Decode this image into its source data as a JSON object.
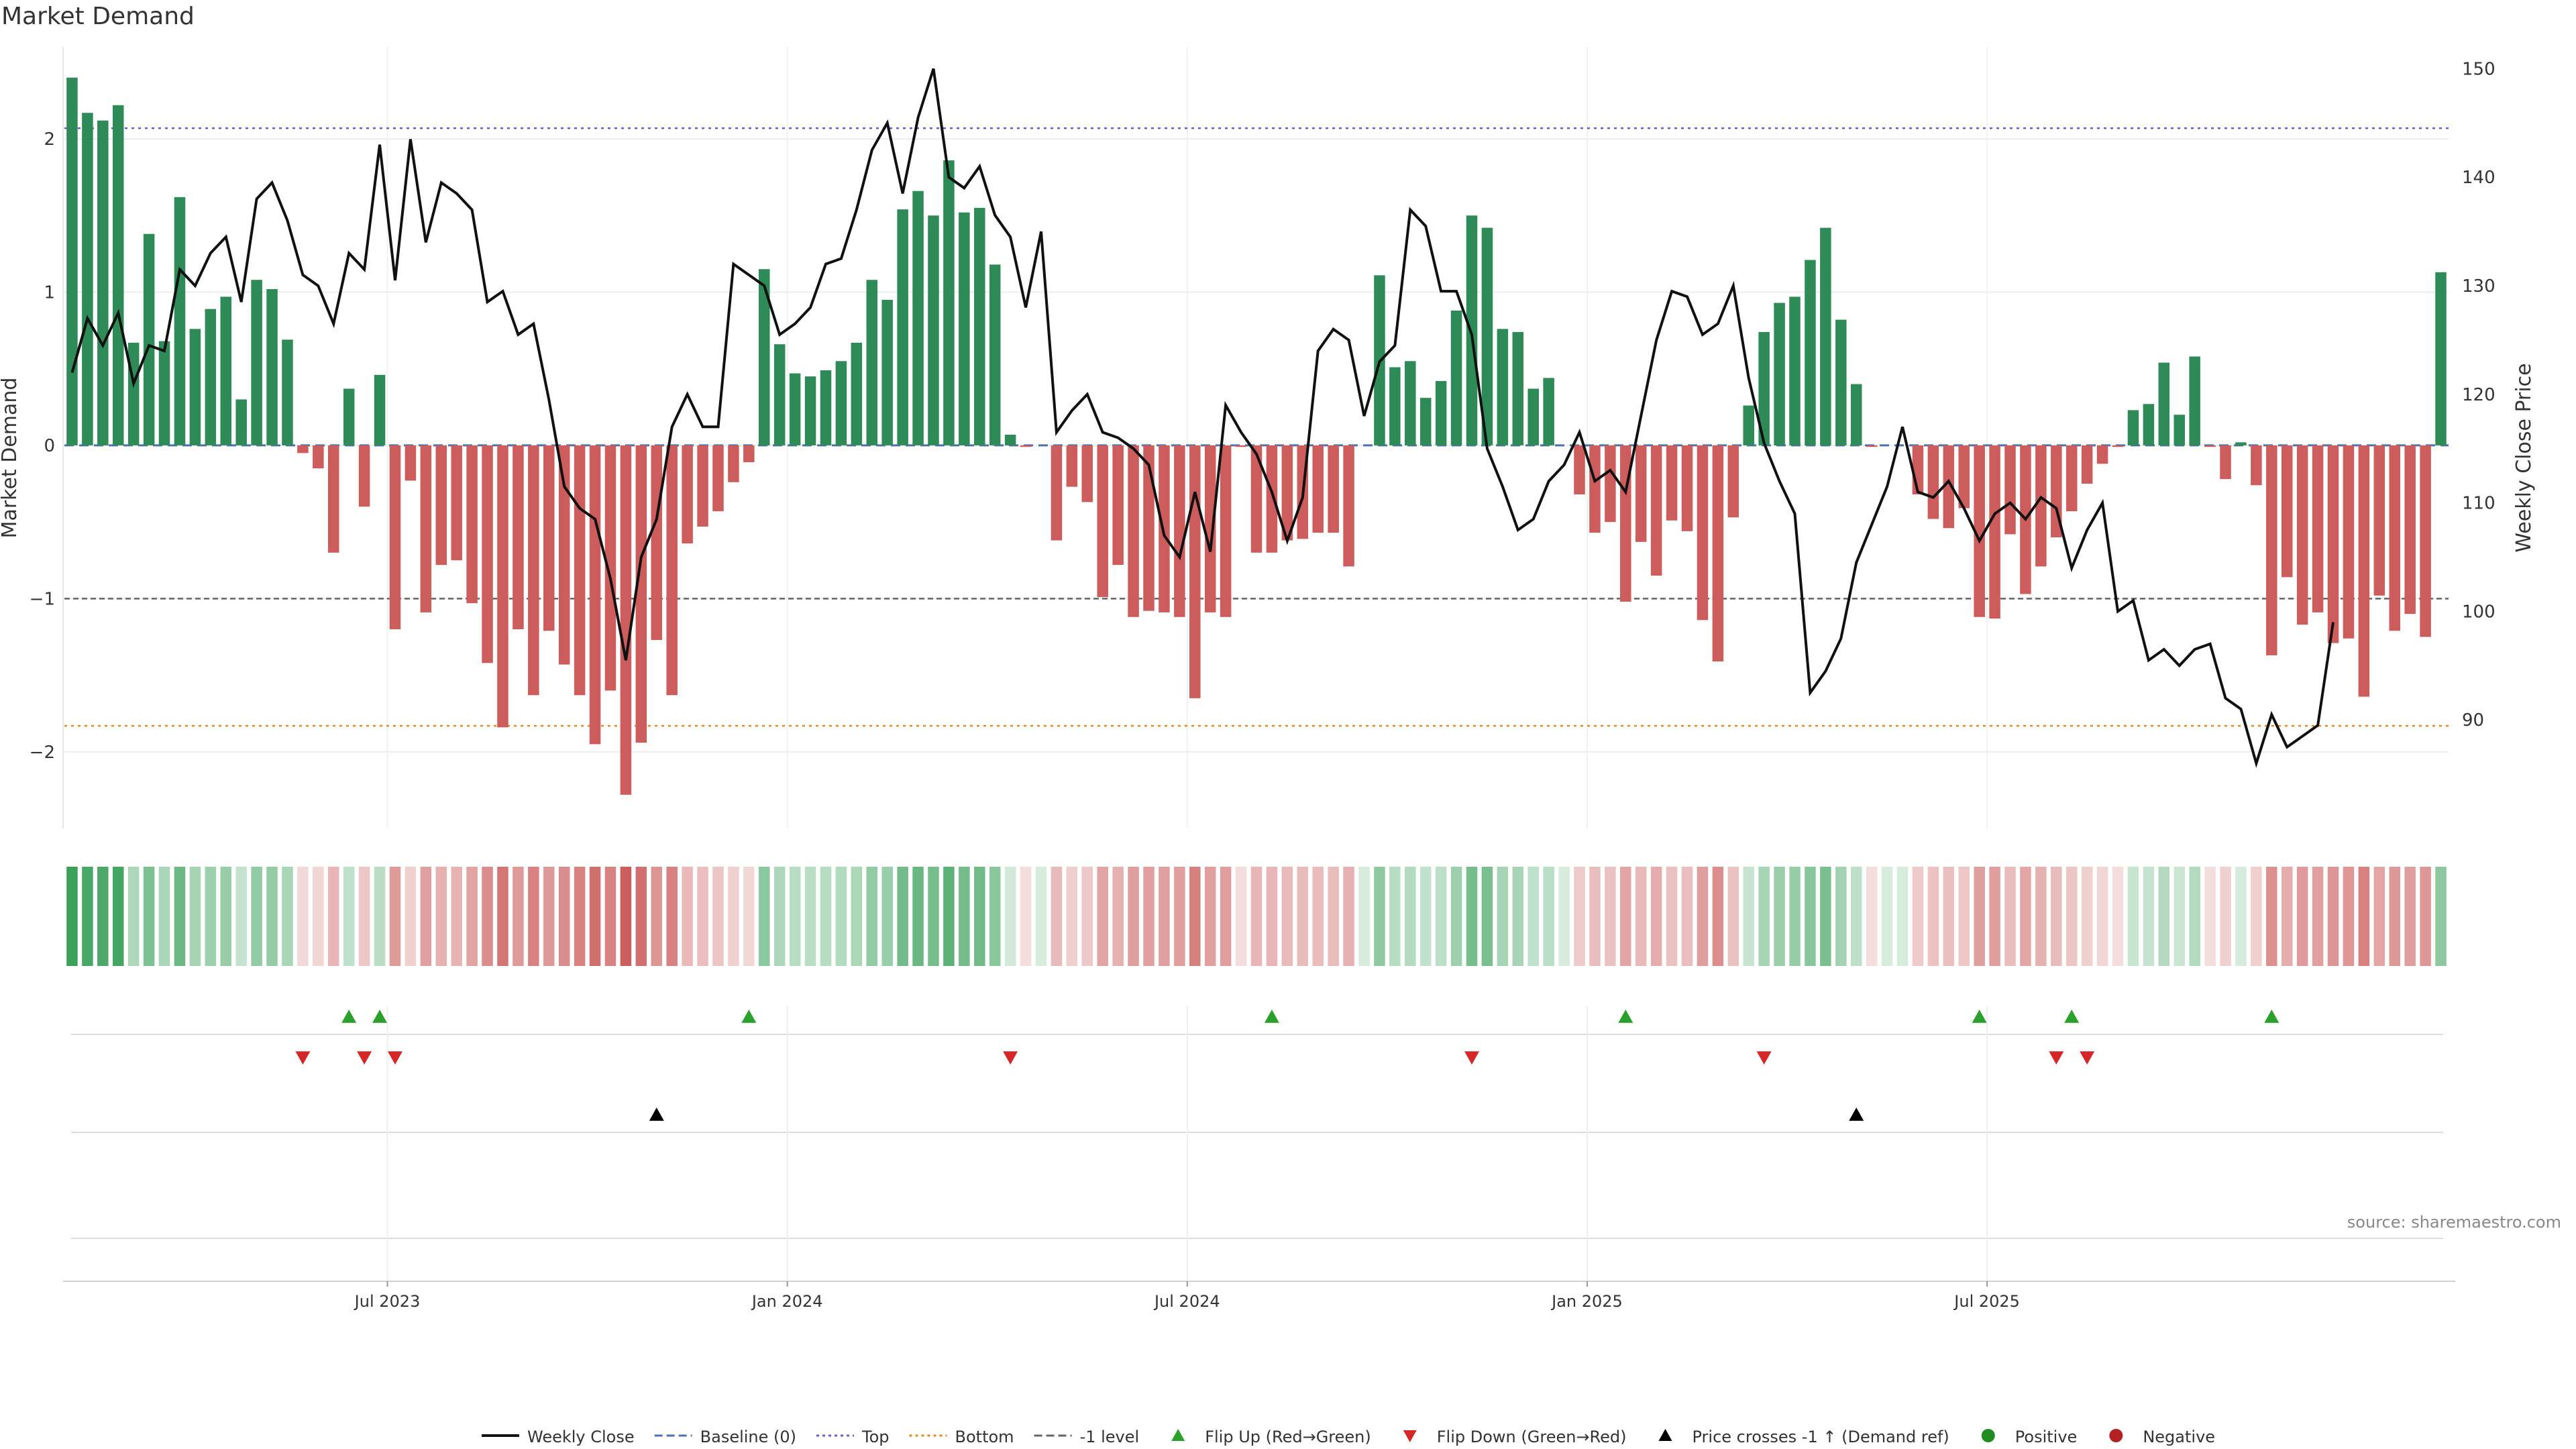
{
  "chart_title": "Market Demand",
  "source_note": "source: sharemaestro.com",
  "colors": {
    "positive": "#2e8b57",
    "negative": "#cd5c5c",
    "price_line": "#111111",
    "baseline": "#4c72b0",
    "top_line": "#6a5acd",
    "bottom_line": "#e08a1e",
    "minus1_line": "#666666",
    "flip_up": "#2ca02c",
    "flip_down": "#d62728",
    "cross": "#000000",
    "legend_positive": "#228b22",
    "legend_negative": "#b22222"
  },
  "chart_data": {
    "type": "bar+line",
    "title": "Market Demand",
    "left_axis": {
      "label": "Market Demand",
      "ylim": [
        -2.5,
        2.6
      ],
      "ticks": [
        2,
        1,
        0,
        -1,
        -2
      ],
      "tick_labels": [
        "2",
        "1",
        "0",
        "−1",
        "−2"
      ]
    },
    "right_axis": {
      "label": "Weekly Close Price",
      "ylim": [
        80,
        152
      ],
      "ticks": [
        150,
        140,
        130,
        120,
        110,
        100,
        90
      ],
      "tick_labels": [
        "150",
        "140",
        "130",
        "120",
        "110",
        "100",
        "90"
      ]
    },
    "reference_lines": {
      "baseline": 0,
      "top": 2.07,
      "bottom": -1.83,
      "minus1": -1.0
    },
    "x_labels": [
      {
        "label": "Jul 2023",
        "week": 21
      },
      {
        "label": "Jan 2024",
        "week": 47
      },
      {
        "label": "Jul 2024",
        "week": 73
      },
      {
        "label": "Jan 2025",
        "week": 99
      },
      {
        "label": "Jul 2025",
        "week": 125
      }
    ],
    "demand": [
      2.4,
      2.17,
      2.12,
      2.22,
      0.67,
      1.38,
      0.68,
      1.62,
      0.76,
      0.89,
      0.97,
      0.3,
      1.08,
      1.02,
      0.69,
      -0.05,
      -0.15,
      -0.7,
      0.37,
      -0.4,
      0.46,
      -1.2,
      -0.23,
      -1.09,
      -0.78,
      -0.75,
      -1.03,
      -1.42,
      -1.84,
      -1.2,
      -1.63,
      -1.21,
      -1.43,
      -1.63,
      -1.95,
      -1.6,
      -2.28,
      -1.94,
      -1.27,
      -1.63,
      -0.64,
      -0.53,
      -0.43,
      -0.24,
      -0.11,
      1.15,
      0.66,
      0.47,
      0.45,
      0.49,
      0.55,
      0.67,
      1.08,
      0.95,
      1.54,
      1.66,
      1.5,
      1.86,
      1.52,
      1.55,
      1.18,
      0.07,
      -0.01,
      0,
      -0.62,
      -0.27,
      -0.37,
      -0.99,
      -0.78,
      -1.12,
      -1.08,
      -1.09,
      -1.12,
      -1.65,
      -1.09,
      -1.12,
      -0.01,
      -0.7,
      -0.7,
      -0.62,
      -0.61,
      -0.57,
      -0.57,
      -0.79,
      0,
      1.11,
      0.51,
      0.55,
      0.31,
      0.42,
      0.88,
      1.5,
      1.42,
      0.76,
      0.74,
      0.37,
      0.44,
      0,
      -0.32,
      -0.57,
      -0.5,
      -1.02,
      -0.63,
      -0.85,
      -0.49,
      -0.56,
      -1.14,
      -1.41,
      -0.47,
      0.26,
      0.74,
      0.93,
      0.97,
      1.21,
      1.42,
      0.82,
      0.4,
      -0.01,
      0,
      0,
      -0.32,
      -0.48,
      -0.54,
      -0.41,
      -1.12,
      -1.13,
      -0.58,
      -0.97,
      -0.79,
      -0.6,
      -0.43,
      -0.25,
      -0.12,
      -0.01,
      0.23,
      0.27,
      0.54,
      0.2,
      0.58,
      -0.01,
      -0.22,
      0.02,
      -0.26,
      -1.37,
      -0.86,
      -1.17,
      -1.09,
      -1.29,
      -1.26,
      -1.64,
      -0.98,
      -1.21,
      -1.1,
      -1.25,
      1.13
    ],
    "weekly_close": [
      122,
      127,
      124.5,
      127.5,
      121,
      124.5,
      124,
      131.5,
      130,
      133,
      134.5,
      128.5,
      138,
      139.5,
      136,
      131,
      130,
      126.5,
      133,
      131.5,
      143,
      130.5,
      143.5,
      134,
      139.5,
      138.5,
      137,
      128.5,
      129.5,
      125.5,
      126.5,
      119.5,
      111.5,
      109.5,
      108.5,
      103,
      95.5,
      105,
      108.5,
      117,
      120,
      117,
      117,
      132,
      131,
      130,
      125.5,
      126.5,
      128,
      132,
      132.5,
      137,
      142.5,
      145,
      138.5,
      145.5,
      150,
      140,
      139,
      141,
      136.5,
      134.5,
      128,
      135,
      116.5,
      118.5,
      120,
      116.5,
      116,
      115,
      113.5,
      107,
      105,
      111,
      105.5,
      119,
      116.5,
      114.5,
      111,
      106.5,
      110.5,
      124,
      126,
      125,
      118,
      123,
      124.5,
      137,
      135.5,
      129.5,
      129.5,
      125.5,
      115,
      111.5,
      107.5,
      108.5,
      112,
      113.5,
      116.5,
      112,
      113,
      111,
      118,
      125,
      129.5,
      129,
      125.5,
      126.5,
      130,
      121.5,
      115.5,
      112,
      109,
      92.5,
      94.5,
      97.5,
      104.5,
      108,
      111.5,
      117,
      111,
      110.5,
      112,
      109.5,
      106.5,
      109,
      110,
      108.5,
      110.5,
      109.5,
      104,
      107.5,
      110,
      100,
      101,
      95.5,
      96.5,
      95,
      96.5,
      97,
      92,
      91,
      86,
      90.5,
      87.5,
      88.5,
      89.5,
      99
    ]
  },
  "sentiment_strip": {
    "description": "color intensity per week follows demand"
  },
  "signal_rows": {
    "flip_up_weeks": [
      18,
      20,
      44,
      78,
      101,
      124,
      130,
      143
    ],
    "flip_down_weeks": [
      15,
      19,
      21,
      61,
      91,
      110,
      129,
      131
    ],
    "cross_up_weeks": [
      38,
      116
    ]
  },
  "legend": [
    {
      "name": "legend-weekly-close",
      "label": "Weekly Close",
      "kind": "line-solid",
      "color": "#111111"
    },
    {
      "name": "legend-baseline",
      "label": "Baseline (0)",
      "kind": "line-dashed",
      "color": "#4c72b0"
    },
    {
      "name": "legend-top",
      "label": "Top",
      "kind": "line-dotted",
      "color": "#6a5acd"
    },
    {
      "name": "legend-bottom",
      "label": "Bottom",
      "kind": "line-dotted",
      "color": "#e08a1e"
    },
    {
      "name": "legend-minus1",
      "label": "-1 level",
      "kind": "line-dashed",
      "color": "#666666"
    },
    {
      "name": "legend-flip-up",
      "label": "Flip Up (Red→Green)",
      "kind": "triangle-up",
      "color": "#2ca02c"
    },
    {
      "name": "legend-flip-down",
      "label": "Flip Down (Green→Red)",
      "kind": "triangle-down",
      "color": "#d62728"
    },
    {
      "name": "legend-cross",
      "label": "Price crosses -1 ↑ (Demand ref)",
      "kind": "triangle-up",
      "color": "#000000"
    },
    {
      "name": "legend-positive",
      "label": "Positive",
      "kind": "dot",
      "color": "#228b22"
    },
    {
      "name": "legend-negative",
      "label": "Negative",
      "kind": "dot",
      "color": "#b22222"
    }
  ]
}
